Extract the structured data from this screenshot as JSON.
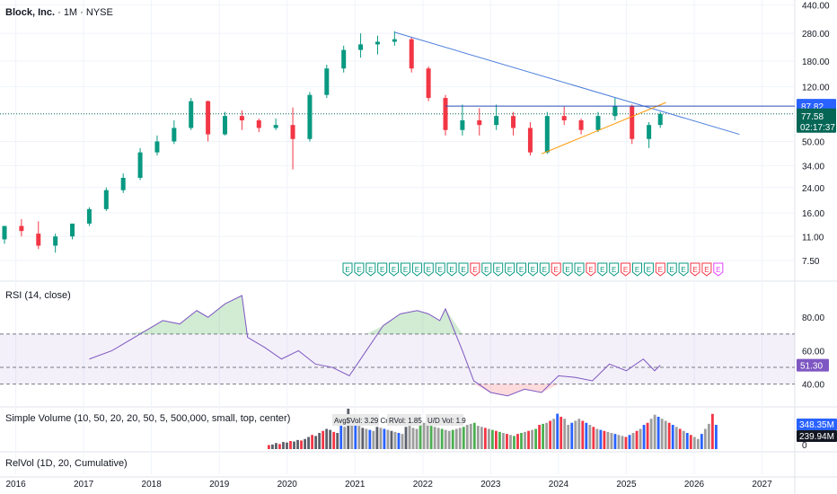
{
  "header": {
    "symbol": "Block, Inc.",
    "interval": "1M",
    "exchange": "NYSE"
  },
  "price_scale": {
    "ticks": [
      "440.00",
      "280.00",
      "180.00",
      "120.00",
      "87.82",
      "77.58",
      "50.00",
      "34.00",
      "24.00",
      "16.00",
      "11.00",
      "7.50"
    ],
    "current_price": "77.58",
    "countdown": "02:17:37",
    "marked_level": "87.82"
  },
  "rsi": {
    "label": "RSI (14, close)",
    "ticks": [
      "80.00",
      "60.00",
      "40.00"
    ],
    "value": "51.30"
  },
  "volume": {
    "label": "Simple Volume (10, 50, 20, 20, 50, 5, 500,000, small, top, center)",
    "avg_label": "Avg$Vol: 3.29 Cr",
    "rvol_label": "RVol: 1.85",
    "ud_label": "U/D Vol: 1.9",
    "value_high": "348.35M",
    "value_low": "239.94M",
    "zero": "0"
  },
  "relvol": {
    "label": "RelVol (1D, 20, Cumulative)"
  },
  "time_axis": [
    "2016",
    "2017",
    "2018",
    "2019",
    "2020",
    "2021",
    "2022",
    "2023",
    "2024",
    "2025",
    "2026",
    "2027"
  ],
  "earnings_marker": "E",
  "colors": {
    "up": "#089981",
    "down": "#f23645",
    "rsi": "#7e57c2",
    "trend_blue": "#2962ff",
    "trend_orange": "#ff9800",
    "price_badge": "#056656",
    "level_badge": "#2962ff"
  },
  "chart_data": [
    {
      "type": "candlestick",
      "title": "Block, Inc. · 1M · NYSE",
      "scale": "log",
      "ylim": [
        6.5,
        450
      ],
      "x_range": [
        "2015-11",
        "2027-06"
      ],
      "series": [
        {
          "name": "Block, Inc.",
          "points": [
            {
              "t": "2015-11",
              "o": 10.5,
              "h": 12.5,
              "l": 9.8,
              "c": 13.0
            },
            {
              "t": "2016-02",
              "o": 13.0,
              "h": 14.5,
              "l": 11.0,
              "c": 12.0
            },
            {
              "t": "2016-05",
              "o": 11.5,
              "h": 14.0,
              "l": 9.0,
              "c": 9.5
            },
            {
              "t": "2016-08",
              "o": 9.5,
              "h": 11.5,
              "l": 8.5,
              "c": 11.0
            },
            {
              "t": "2016-11",
              "o": 11.0,
              "h": 13.5,
              "l": 10.5,
              "c": 13.5
            },
            {
              "t": "2017-02",
              "o": 13.5,
              "h": 17.5,
              "l": 13.0,
              "c": 17.0
            },
            {
              "t": "2017-05",
              "o": 17.0,
              "h": 24.0,
              "l": 16.5,
              "c": 23.0
            },
            {
              "t": "2017-08",
              "o": 23.0,
              "h": 30.0,
              "l": 22.0,
              "c": 28.0
            },
            {
              "t": "2017-11",
              "o": 28.0,
              "h": 45.0,
              "l": 27.0,
              "c": 42.0
            },
            {
              "t": "2018-02",
              "o": 42.0,
              "h": 55.0,
              "l": 40.0,
              "c": 50.0
            },
            {
              "t": "2018-05",
              "o": 50.0,
              "h": 70.0,
              "l": 48.0,
              "c": 62.0
            },
            {
              "t": "2018-08",
              "o": 62.0,
              "h": 100.0,
              "l": 60.0,
              "c": 95.0
            },
            {
              "t": "2018-11",
              "o": 95.0,
              "h": 96.0,
              "l": 50.0,
              "c": 56.0
            },
            {
              "t": "2019-02",
              "o": 56.0,
              "h": 80.0,
              "l": 55.0,
              "c": 75.0
            },
            {
              "t": "2019-05",
              "o": 75.0,
              "h": 82.0,
              "l": 60.0,
              "c": 70.0
            },
            {
              "t": "2019-08",
              "o": 70.0,
              "h": 72.0,
              "l": 58.0,
              "c": 62.0
            },
            {
              "t": "2019-11",
              "o": 62.0,
              "h": 72.0,
              "l": 60.0,
              "c": 65.0
            },
            {
              "t": "2020-02",
              "o": 65.0,
              "h": 86.0,
              "l": 32.0,
              "c": 52.0
            },
            {
              "t": "2020-05",
              "o": 52.0,
              "h": 110.0,
              "l": 50.0,
              "c": 105.0
            },
            {
              "t": "2020-08",
              "o": 105.0,
              "h": 170.0,
              "l": 100.0,
              "c": 160.0
            },
            {
              "t": "2020-11",
              "o": 160.0,
              "h": 230.0,
              "l": 150.0,
              "c": 215.0
            },
            {
              "t": "2021-02",
              "o": 215.0,
              "h": 280.0,
              "l": 190.0,
              "c": 235.0
            },
            {
              "t": "2021-05",
              "o": 235.0,
              "h": 270.0,
              "l": 200.0,
              "c": 245.0
            },
            {
              "t": "2021-08",
              "o": 245.0,
              "h": 290.0,
              "l": 230.0,
              "c": 255.0
            },
            {
              "t": "2021-11",
              "o": 255.0,
              "h": 265.0,
              "l": 150.0,
              "c": 160.0
            },
            {
              "t": "2022-02",
              "o": 160.0,
              "h": 165.0,
              "l": 95.0,
              "c": 100.0
            },
            {
              "t": "2022-05",
              "o": 100.0,
              "h": 105.0,
              "l": 55.0,
              "c": 60.0
            },
            {
              "t": "2022-08",
              "o": 60.0,
              "h": 90.0,
              "l": 55.0,
              "c": 70.0
            },
            {
              "t": "2022-11",
              "o": 70.0,
              "h": 85.0,
              "l": 55.0,
              "c": 65.0
            },
            {
              "t": "2023-02",
              "o": 65.0,
              "h": 90.0,
              "l": 60.0,
              "c": 75.0
            },
            {
              "t": "2023-05",
              "o": 75.0,
              "h": 80.0,
              "l": 55.0,
              "c": 62.0
            },
            {
              "t": "2023-08",
              "o": 62.0,
              "h": 68.0,
              "l": 40.0,
              "c": 42.0
            },
            {
              "t": "2023-11",
              "o": 42.0,
              "h": 80.0,
              "l": 41.0,
              "c": 75.0
            },
            {
              "t": "2024-02",
              "o": 75.0,
              "h": 87.0,
              "l": 65.0,
              "c": 70.0
            },
            {
              "t": "2024-05",
              "o": 70.0,
              "h": 72.0,
              "l": 56.0,
              "c": 60.0
            },
            {
              "t": "2024-08",
              "o": 60.0,
              "h": 80.0,
              "l": 58.0,
              "c": 75.0
            },
            {
              "t": "2024-11",
              "o": 75.0,
              "h": 100.0,
              "l": 70.0,
              "c": 88.0
            },
            {
              "t": "2025-02",
              "o": 88.0,
              "h": 90.0,
              "l": 48.0,
              "c": 52.0
            },
            {
              "t": "2025-05",
              "o": 52.0,
              "h": 68.0,
              "l": 45.0,
              "c": 65.0
            },
            {
              "t": "2025-07",
              "o": 65.0,
              "h": 80.0,
              "l": 62.0,
              "c": 77.58
            }
          ]
        }
      ],
      "trendlines": [
        {
          "name": "descending resistance",
          "from": {
            "t": "2021-08",
            "v": 285
          },
          "to": {
            "t": "2026-09",
            "v": 56
          }
        },
        {
          "name": "ascending support",
          "from": {
            "t": "2023-10",
            "v": 41
          },
          "to": {
            "t": "2025-08",
            "v": 93
          }
        },
        {
          "name": "horizontal level",
          "from": {
            "t": "2022-05",
            "v": 87.82
          },
          "to": {
            "t": "2027-06",
            "v": 87.82
          }
        }
      ]
    },
    {
      "type": "line",
      "title": "RSI (14, close)",
      "ylim": [
        28,
        100
      ],
      "bands": [
        40,
        70
      ],
      "midline": 50,
      "x_range": [
        "2015-11",
        "2027-06"
      ],
      "series": [
        {
          "name": "RSI",
          "points": [
            [
              "2017-02",
              55
            ],
            [
              "2017-06",
              60
            ],
            [
              "2017-09",
              66
            ],
            [
              "2017-12",
              72
            ],
            [
              "2018-03",
              78
            ],
            [
              "2018-06",
              76
            ],
            [
              "2018-09",
              84
            ],
            [
              "2018-11",
              80
            ],
            [
              "2019-02",
              88
            ],
            [
              "2019-05",
              93
            ],
            [
              "2019-06",
              68
            ],
            [
              "2019-09",
              62
            ],
            [
              "2019-12",
              55
            ],
            [
              "2020-03",
              60
            ],
            [
              "2020-06",
              52
            ],
            [
              "2020-09",
              50
            ],
            [
              "2020-12",
              45
            ],
            [
              "2021-03",
              60
            ],
            [
              "2021-06",
              75
            ],
            [
              "2021-09",
              82
            ],
            [
              "2021-12",
              84
            ],
            [
              "2022-02",
              82
            ],
            [
              "2022-04",
              78
            ],
            [
              "2022-05",
              85
            ],
            [
              "2022-08",
              60
            ],
            [
              "2022-10",
              42
            ],
            [
              "2023-01",
              35
            ],
            [
              "2023-04",
              33
            ],
            [
              "2023-07",
              37
            ],
            [
              "2023-10",
              35
            ],
            [
              "2024-01",
              45
            ],
            [
              "2024-04",
              44
            ],
            [
              "2024-07",
              42
            ],
            [
              "2024-10",
              52
            ],
            [
              "2025-01",
              48
            ],
            [
              "2025-04",
              55
            ],
            [
              "2025-06",
              48
            ],
            [
              "2025-07",
              51.3
            ]
          ]
        }
      ]
    },
    {
      "type": "bar",
      "title": "Simple Volume",
      "ylim": [
        0,
        400
      ],
      "x_range": [
        "2015-11",
        "2027-06"
      ],
      "series": [
        {
          "name": "Volume",
          "unit": "M",
          "values": [
            40,
            45,
            60,
            50,
            70,
            65,
            80,
            75,
            90,
            85,
            100,
            120,
            140,
            130,
            160,
            180,
            200,
            190,
            170,
            160,
            240,
            220,
            400,
            260,
            250,
            230,
            210,
            200,
            190,
            180,
            220,
            210,
            200,
            190,
            180,
            170,
            160,
            150,
            220,
            230,
            210,
            200,
            240,
            260,
            250,
            230,
            220,
            210,
            200,
            190,
            180,
            190,
            200,
            210,
            220,
            240,
            250,
            260,
            230,
            220,
            210,
            200,
            190,
            180,
            170,
            160,
            150,
            140,
            130,
            150,
            160,
            170,
            180,
            190,
            200,
            240,
            250,
            260,
            280,
            300,
            350,
            320,
            300,
            240,
            260,
            280,
            300,
            280,
            260,
            240,
            220,
            200,
            190,
            180,
            170,
            160,
            150,
            140,
            130,
            120,
            140,
            160,
            180,
            200,
            240,
            260,
            300,
            340,
            320,
            300,
            280,
            260,
            240,
            220,
            200,
            180,
            160,
            140,
            120,
            100,
            150,
            200,
            250,
            348.35,
            239.94
          ]
        }
      ]
    }
  ]
}
